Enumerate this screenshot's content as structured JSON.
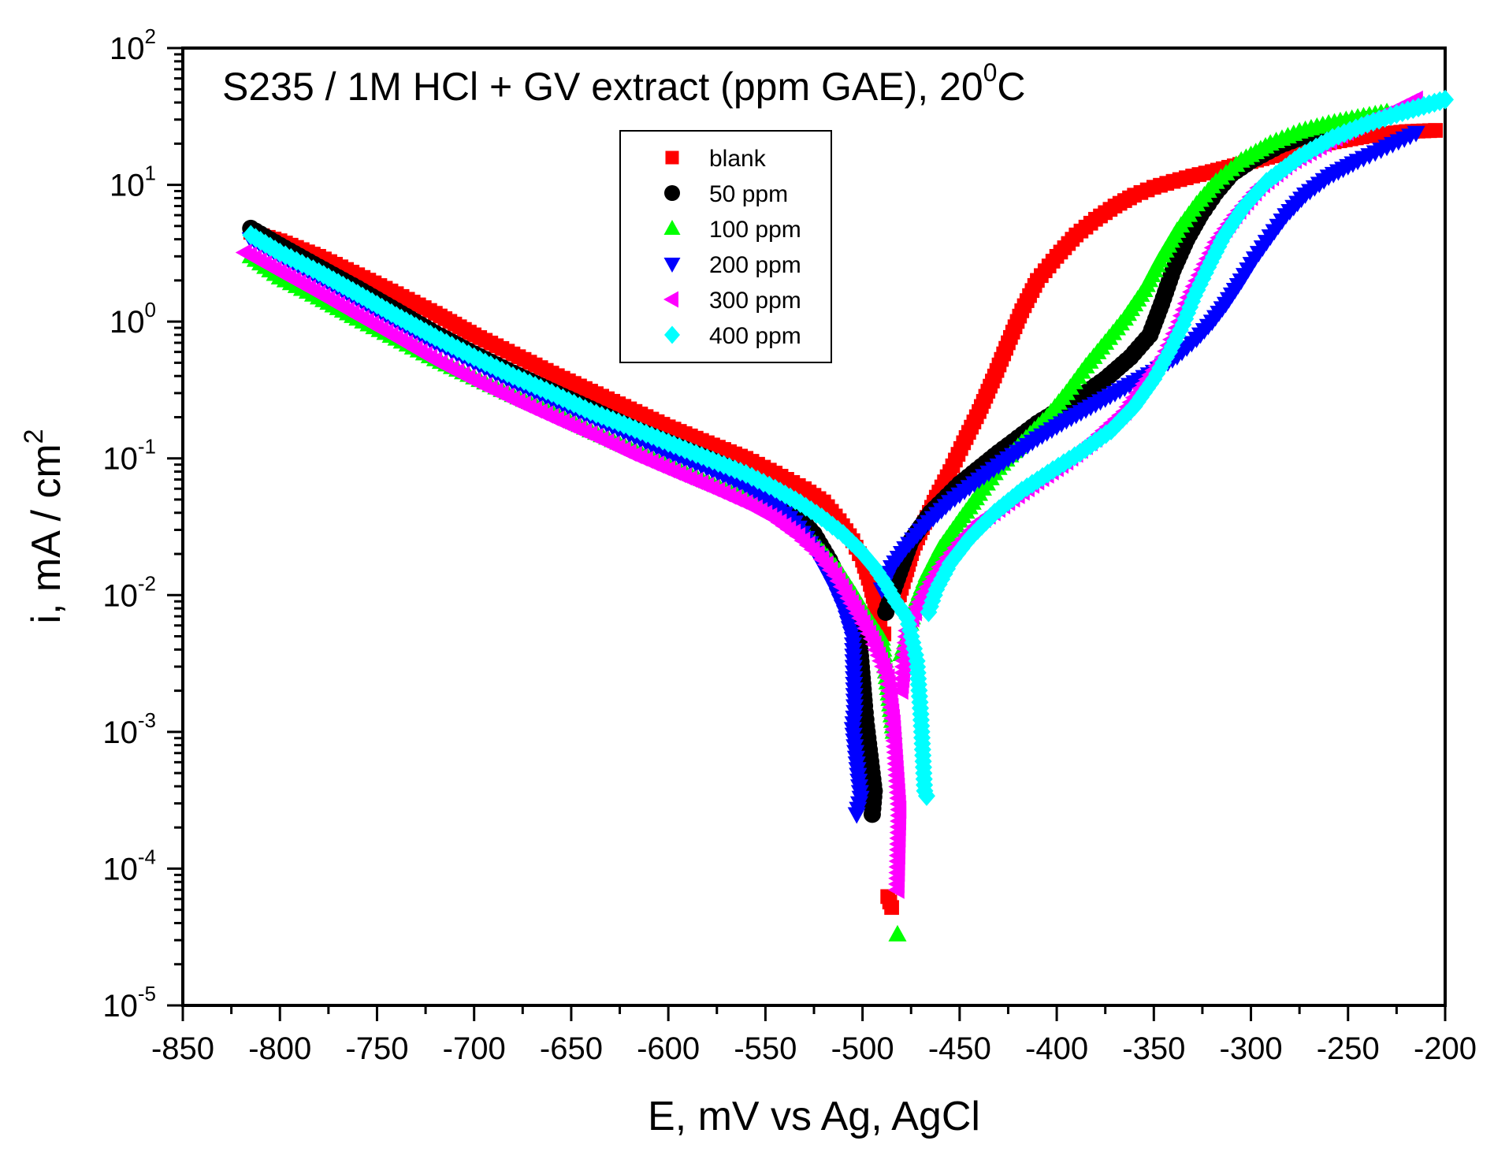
{
  "chart_data": {
    "type": "scatter",
    "title_main": "S235 / 1M HCl + GV extract (ppm GAE), 20",
    "title_sup": "0",
    "title_tail": "C",
    "xlabel": "E, mV vs Ag, AgCl",
    "ylabel_main": "i, mA / cm",
    "ylabel_sup": "2",
    "yscale": "log",
    "xlim": [
      -850,
      -200
    ],
    "ylim_exp": [
      -5,
      2
    ],
    "x_ticks": [
      -850,
      -800,
      -750,
      -700,
      -650,
      -600,
      -550,
      -500,
      -450,
      -400,
      -350,
      -300,
      -250,
      -200
    ],
    "x_tick_labels": [
      "-850",
      "-800",
      "-750",
      "-700",
      "-650",
      "-600",
      "-550",
      "-500",
      "-450",
      "-400",
      "-350",
      "-300",
      "-250",
      "-200"
    ],
    "y_tick_base": "10",
    "y_tick_exps": [
      "-5",
      "-4",
      "-3",
      "-2",
      "-1",
      "0",
      "1",
      "2"
    ],
    "legend_position": "top-center",
    "series": [
      {
        "name": "blank",
        "marker": "square",
        "color": "#ff0000",
        "points": [
          [
            -815,
            4.5
          ],
          [
            -800,
            3.9
          ],
          [
            -780,
            3.0
          ],
          [
            -760,
            2.2
          ],
          [
            -740,
            1.6
          ],
          [
            -720,
            1.15
          ],
          [
            -700,
            0.8
          ],
          [
            -680,
            0.58
          ],
          [
            -660,
            0.42
          ],
          [
            -640,
            0.31
          ],
          [
            -620,
            0.23
          ],
          [
            -600,
            0.17
          ],
          [
            -580,
            0.13
          ],
          [
            -560,
            0.1
          ],
          [
            -545,
            0.078
          ],
          [
            -530,
            0.06
          ],
          [
            -520,
            0.048
          ],
          [
            -512,
            0.035
          ],
          [
            -505,
            0.025
          ],
          [
            -500,
            0.018
          ],
          [
            -496,
            0.012
          ],
          [
            -493,
            0.008
          ],
          [
            -491,
            0.006
          ],
          [
            -489,
            0.0052
          ],
          [
            -487,
            6.25e-05
          ],
          [
            -485,
            5.2e-05
          ],
          [
            -482,
            0.009
          ],
          [
            -478,
            0.014
          ],
          [
            -474,
            0.022
          ],
          [
            -468,
            0.034
          ],
          [
            -462,
            0.052
          ],
          [
            -455,
            0.08
          ],
          [
            -448,
            0.13
          ],
          [
            -440,
            0.22
          ],
          [
            -432,
            0.4
          ],
          [
            -425,
            0.7
          ],
          [
            -418,
            1.2
          ],
          [
            -410,
            2.0
          ],
          [
            -400,
            3.0
          ],
          [
            -390,
            4.3
          ],
          [
            -380,
            5.6
          ],
          [
            -370,
            7.0
          ],
          [
            -360,
            8.4
          ],
          [
            -350,
            9.6
          ],
          [
            -340,
            10.6
          ],
          [
            -330,
            11.6
          ],
          [
            -320,
            12.5
          ],
          [
            -300,
            14.8
          ],
          [
            -280,
            17.5
          ],
          [
            -260,
            20.3
          ],
          [
            -240,
            22.8
          ],
          [
            -220,
            24.5
          ],
          [
            -205,
            25.0
          ]
        ]
      },
      {
        "name": "50 ppm",
        "marker": "circle",
        "color": "#000000",
        "points": [
          [
            -815,
            4.8
          ],
          [
            -800,
            3.6
          ],
          [
            -780,
            2.5
          ],
          [
            -760,
            1.75
          ],
          [
            -740,
            1.2
          ],
          [
            -720,
            0.82
          ],
          [
            -700,
            0.58
          ],
          [
            -680,
            0.42
          ],
          [
            -660,
            0.31
          ],
          [
            -640,
            0.23
          ],
          [
            -620,
            0.17
          ],
          [
            -600,
            0.13
          ],
          [
            -580,
            0.1
          ],
          [
            -560,
            0.075
          ],
          [
            -545,
            0.055
          ],
          [
            -535,
            0.04
          ],
          [
            -525,
            0.028
          ],
          [
            -517,
            0.018
          ],
          [
            -511,
            0.012
          ],
          [
            -506,
            0.0075
          ],
          [
            -502,
            0.0052
          ],
          [
            -499,
            0.00155
          ],
          [
            -498,
            0.0011
          ],
          [
            -494,
            0.00037
          ],
          [
            -495,
            0.00025
          ],
          [
            -488,
            0.0075
          ],
          [
            -484,
            0.011
          ],
          [
            -480,
            0.016
          ],
          [
            -475,
            0.025
          ],
          [
            -465,
            0.04
          ],
          [
            -450,
            0.065
          ],
          [
            -430,
            0.11
          ],
          [
            -410,
            0.18
          ],
          [
            -390,
            0.27
          ],
          [
            -375,
            0.38
          ],
          [
            -362,
            0.55
          ],
          [
            -352,
            0.8
          ],
          [
            -346,
            1.35
          ],
          [
            -340,
            2.4
          ],
          [
            -333,
            4.0
          ],
          [
            -326,
            6.0
          ],
          [
            -318,
            8.8
          ],
          [
            -310,
            12.0
          ],
          [
            -300,
            15.0
          ],
          [
            -285,
            19.5
          ],
          [
            -270,
            23.5
          ],
          [
            -255,
            27.0
          ],
          [
            -240,
            30.0
          ]
        ]
      },
      {
        "name": "100 ppm",
        "marker": "triangle-up",
        "color": "#00ff00",
        "points": [
          [
            -815,
            3.0
          ],
          [
            -800,
            2.1
          ],
          [
            -780,
            1.5
          ],
          [
            -760,
            1.05
          ],
          [
            -740,
            0.75
          ],
          [
            -720,
            0.53
          ],
          [
            -700,
            0.39
          ],
          [
            -680,
            0.29
          ],
          [
            -660,
            0.22
          ],
          [
            -640,
            0.16
          ],
          [
            -620,
            0.12
          ],
          [
            -600,
            0.09
          ],
          [
            -580,
            0.068
          ],
          [
            -560,
            0.052
          ],
          [
            -545,
            0.04
          ],
          [
            -532,
            0.03
          ],
          [
            -522,
            0.022
          ],
          [
            -512,
            0.015
          ],
          [
            -504,
            0.01
          ],
          [
            -497,
            0.0068
          ],
          [
            -490,
            0.0048
          ],
          [
            -484,
            0.001
          ],
          [
            -482,
            3.3e-05
          ],
          [
            -480,
            0.0037
          ],
          [
            -477,
            0.005
          ],
          [
            -473,
            0.0085
          ],
          [
            -467,
            0.014
          ],
          [
            -460,
            0.022
          ],
          [
            -450,
            0.035
          ],
          [
            -440,
            0.055
          ],
          [
            -430,
            0.085
          ],
          [
            -418,
            0.13
          ],
          [
            -405,
            0.2
          ],
          [
            -395,
            0.3
          ],
          [
            -385,
            0.47
          ],
          [
            -375,
            0.7
          ],
          [
            -365,
            1.05
          ],
          [
            -355,
            1.7
          ],
          [
            -347,
            2.8
          ],
          [
            -338,
            4.6
          ],
          [
            -328,
            7.2
          ],
          [
            -318,
            10.5
          ],
          [
            -305,
            15.0
          ],
          [
            -290,
            20.0
          ],
          [
            -275,
            24.5
          ],
          [
            -260,
            28.0
          ],
          [
            -245,
            31.0
          ],
          [
            -230,
            34.0
          ]
        ]
      },
      {
        "name": "200 ppm",
        "marker": "triangle-down",
        "color": "#0000ff",
        "points": [
          [
            -815,
            4.0
          ],
          [
            -800,
            3.0
          ],
          [
            -780,
            2.1
          ],
          [
            -760,
            1.45
          ],
          [
            -740,
            1.0
          ],
          [
            -720,
            0.7
          ],
          [
            -700,
            0.5
          ],
          [
            -680,
            0.36
          ],
          [
            -660,
            0.27
          ],
          [
            -640,
            0.2
          ],
          [
            -620,
            0.15
          ],
          [
            -600,
            0.11
          ],
          [
            -580,
            0.085
          ],
          [
            -560,
            0.063
          ],
          [
            -545,
            0.046
          ],
          [
            -535,
            0.034
          ],
          [
            -527,
            0.024
          ],
          [
            -520,
            0.016
          ],
          [
            -514,
            0.011
          ],
          [
            -509,
            0.0075
          ],
          [
            -505,
            0.0048
          ],
          [
            -504,
            0.0014
          ],
          [
            -505,
            0.00105
          ],
          [
            -501,
            0.00033
          ],
          [
            -503,
            0.00025
          ],
          [
            -490,
            0.011
          ],
          [
            -485,
            0.016
          ],
          [
            -478,
            0.022
          ],
          [
            -468,
            0.032
          ],
          [
            -455,
            0.048
          ],
          [
            -440,
            0.07
          ],
          [
            -425,
            0.1
          ],
          [
            -410,
            0.14
          ],
          [
            -395,
            0.19
          ],
          [
            -380,
            0.25
          ],
          [
            -365,
            0.33
          ],
          [
            -350,
            0.43
          ],
          [
            -338,
            0.56
          ],
          [
            -328,
            0.75
          ],
          [
            -320,
            1.0
          ],
          [
            -313,
            1.35
          ],
          [
            -305,
            2.0
          ],
          [
            -298,
            2.9
          ],
          [
            -290,
            4.2
          ],
          [
            -282,
            6.0
          ],
          [
            -272,
            8.5
          ],
          [
            -260,
            11.5
          ],
          [
            -245,
            15.0
          ],
          [
            -230,
            19.0
          ],
          [
            -215,
            24.0
          ]
        ]
      },
      {
        "name": "300 ppm",
        "marker": "triangle-left",
        "color": "#ff00ff",
        "points": [
          [
            -818,
            3.2
          ],
          [
            -800,
            2.3
          ],
          [
            -780,
            1.6
          ],
          [
            -760,
            1.1
          ],
          [
            -740,
            0.76
          ],
          [
            -720,
            0.52
          ],
          [
            -700,
            0.37
          ],
          [
            -680,
            0.27
          ],
          [
            -660,
            0.2
          ],
          [
            -640,
            0.15
          ],
          [
            -620,
            0.11
          ],
          [
            -600,
            0.083
          ],
          [
            -580,
            0.063
          ],
          [
            -560,
            0.047
          ],
          [
            -545,
            0.036
          ],
          [
            -533,
            0.027
          ],
          [
            -523,
            0.02
          ],
          [
            -514,
            0.014
          ],
          [
            -507,
            0.0095
          ],
          [
            -501,
            0.0068
          ],
          [
            -495,
            0.0048
          ],
          [
            -487,
            0.0025
          ],
          [
            -486,
            0.002
          ],
          [
            -484,
            0.00115
          ],
          [
            -481,
            0.00027
          ],
          [
            -482,
            7e-05
          ],
          [
            -480,
            0.002
          ],
          [
            -477,
            0.0055
          ],
          [
            -473,
            0.0075
          ],
          [
            -468,
            0.0105
          ],
          [
            -460,
            0.016
          ],
          [
            -450,
            0.024
          ],
          [
            -440,
            0.034
          ],
          [
            -425,
            0.048
          ],
          [
            -410,
            0.068
          ],
          [
            -395,
            0.095
          ],
          [
            -380,
            0.14
          ],
          [
            -365,
            0.22
          ],
          [
            -355,
            0.35
          ],
          [
            -345,
            0.55
          ],
          [
            -338,
            0.9
          ],
          [
            -332,
            1.5
          ],
          [
            -325,
            2.4
          ],
          [
            -318,
            3.8
          ],
          [
            -308,
            6.0
          ],
          [
            -296,
            9.5
          ],
          [
            -280,
            14.5
          ],
          [
            -262,
            20.0
          ],
          [
            -245,
            27.0
          ],
          [
            -228,
            34.0
          ],
          [
            -215,
            42.0
          ]
        ]
      },
      {
        "name": "400 ppm",
        "marker": "diamond",
        "color": "#00ffff",
        "points": [
          [
            -815,
            4.3
          ],
          [
            -800,
            3.2
          ],
          [
            -780,
            2.3
          ],
          [
            -760,
            1.6
          ],
          [
            -740,
            1.1
          ],
          [
            -720,
            0.77
          ],
          [
            -700,
            0.55
          ],
          [
            -680,
            0.4
          ],
          [
            -660,
            0.3
          ],
          [
            -640,
            0.22
          ],
          [
            -620,
            0.17
          ],
          [
            -600,
            0.13
          ],
          [
            -580,
            0.1
          ],
          [
            -560,
            0.077
          ],
          [
            -545,
            0.06
          ],
          [
            -532,
            0.047
          ],
          [
            -521,
            0.037
          ],
          [
            -510,
            0.028
          ],
          [
            -501,
            0.021
          ],
          [
            -494,
            0.016
          ],
          [
            -488,
            0.012
          ],
          [
            -483,
            0.009
          ],
          [
            -477,
            0.0068
          ],
          [
            -472,
            0.0033
          ],
          [
            -470,
            0.00135
          ],
          [
            -468,
            0.00037
          ],
          [
            -467,
            0.00034
          ],
          [
            -466,
            0.0075
          ],
          [
            -462,
            0.011
          ],
          [
            -455,
            0.017
          ],
          [
            -445,
            0.026
          ],
          [
            -432,
            0.04
          ],
          [
            -418,
            0.058
          ],
          [
            -402,
            0.082
          ],
          [
            -388,
            0.11
          ],
          [
            -372,
            0.16
          ],
          [
            -360,
            0.24
          ],
          [
            -350,
            0.38
          ],
          [
            -342,
            0.6
          ],
          [
            -335,
            0.95
          ],
          [
            -329,
            1.55
          ],
          [
            -322,
            2.5
          ],
          [
            -314,
            4.2
          ],
          [
            -304,
            6.8
          ],
          [
            -292,
            10.5
          ],
          [
            -275,
            16.0
          ],
          [
            -258,
            22.0
          ],
          [
            -240,
            28.0
          ],
          [
            -222,
            34.0
          ],
          [
            -200,
            42.0
          ]
        ]
      }
    ]
  }
}
